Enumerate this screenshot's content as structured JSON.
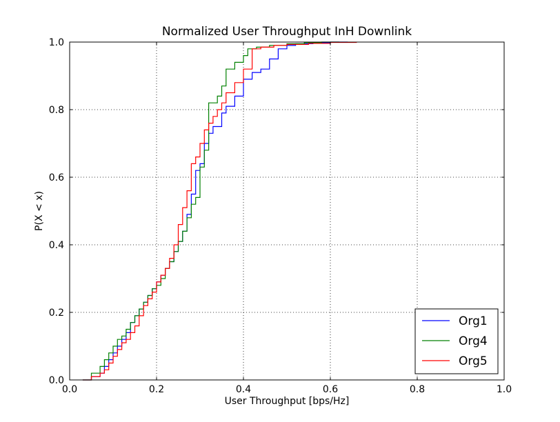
{
  "chart_data": {
    "type": "line",
    "title": "Normalized User Throughput InH Downlink",
    "xlabel": "User Throughput [bps/Hz]",
    "ylabel": "P(X < x)",
    "xlim": [
      0.0,
      1.0
    ],
    "ylim": [
      0.0,
      1.0
    ],
    "xticks": [
      "0.0",
      "0.2",
      "0.4",
      "0.6",
      "0.8",
      "1.0"
    ],
    "yticks": [
      "0.0",
      "0.2",
      "0.4",
      "0.6",
      "0.8",
      "1.0"
    ],
    "grid": true,
    "legend_position": "bottom-right",
    "series": [
      {
        "name": "Org1",
        "color": "#0000ff",
        "x": [
          0.03,
          0.05,
          0.07,
          0.08,
          0.09,
          0.1,
          0.11,
          0.12,
          0.13,
          0.14,
          0.15,
          0.16,
          0.17,
          0.18,
          0.19,
          0.2,
          0.21,
          0.22,
          0.23,
          0.24,
          0.25,
          0.26,
          0.27,
          0.28,
          0.29,
          0.3,
          0.31,
          0.32,
          0.33,
          0.35,
          0.36,
          0.38,
          0.4,
          0.42,
          0.44,
          0.46,
          0.48,
          0.5,
          0.52,
          0.56,
          0.6,
          0.64
        ],
        "y": [
          0.0,
          0.01,
          0.02,
          0.04,
          0.06,
          0.08,
          0.1,
          0.12,
          0.14,
          0.17,
          0.19,
          0.21,
          0.23,
          0.25,
          0.27,
          0.29,
          0.31,
          0.33,
          0.35,
          0.38,
          0.41,
          0.44,
          0.49,
          0.55,
          0.62,
          0.64,
          0.7,
          0.73,
          0.75,
          0.79,
          0.81,
          0.84,
          0.89,
          0.91,
          0.92,
          0.95,
          0.98,
          0.99,
          0.995,
          0.998,
          1.0,
          1.0
        ]
      },
      {
        "name": "Org4",
        "color": "#008000",
        "x": [
          0.03,
          0.05,
          0.07,
          0.08,
          0.09,
          0.1,
          0.11,
          0.12,
          0.13,
          0.14,
          0.15,
          0.16,
          0.17,
          0.18,
          0.19,
          0.2,
          0.21,
          0.22,
          0.23,
          0.24,
          0.25,
          0.26,
          0.27,
          0.28,
          0.29,
          0.3,
          0.31,
          0.32,
          0.34,
          0.35,
          0.36,
          0.38,
          0.4,
          0.41,
          0.43,
          0.46,
          0.5,
          0.54,
          0.58,
          0.62
        ],
        "y": [
          0.0,
          0.02,
          0.04,
          0.06,
          0.08,
          0.1,
          0.12,
          0.13,
          0.15,
          0.17,
          0.19,
          0.21,
          0.23,
          0.25,
          0.27,
          0.28,
          0.3,
          0.33,
          0.35,
          0.38,
          0.41,
          0.44,
          0.48,
          0.52,
          0.54,
          0.63,
          0.68,
          0.82,
          0.84,
          0.87,
          0.92,
          0.94,
          0.96,
          0.98,
          0.985,
          0.99,
          0.995,
          0.998,
          1.0,
          1.0
        ]
      },
      {
        "name": "Org5",
        "color": "#ff0000",
        "x": [
          0.03,
          0.05,
          0.07,
          0.08,
          0.09,
          0.1,
          0.11,
          0.12,
          0.13,
          0.14,
          0.15,
          0.16,
          0.17,
          0.18,
          0.19,
          0.2,
          0.21,
          0.22,
          0.23,
          0.24,
          0.25,
          0.26,
          0.27,
          0.28,
          0.29,
          0.3,
          0.31,
          0.32,
          0.33,
          0.34,
          0.35,
          0.36,
          0.38,
          0.4,
          0.42,
          0.44,
          0.47,
          0.5,
          0.55,
          0.6,
          0.66
        ],
        "y": [
          0.0,
          0.01,
          0.02,
          0.03,
          0.05,
          0.07,
          0.09,
          0.11,
          0.12,
          0.14,
          0.16,
          0.19,
          0.22,
          0.24,
          0.26,
          0.29,
          0.31,
          0.33,
          0.36,
          0.4,
          0.46,
          0.51,
          0.56,
          0.64,
          0.66,
          0.7,
          0.74,
          0.76,
          0.78,
          0.8,
          0.82,
          0.85,
          0.88,
          0.92,
          0.98,
          0.985,
          0.99,
          0.993,
          0.996,
          0.999,
          1.0
        ]
      }
    ]
  }
}
